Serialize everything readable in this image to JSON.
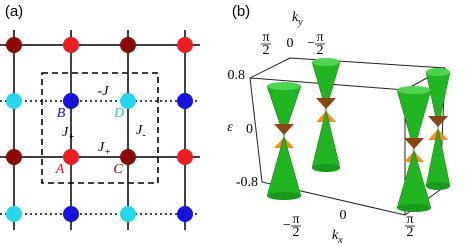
{
  "panel_a": {
    "label": "(a)",
    "bond_top": "-J",
    "bond_left": {
      "main": "J",
      "sub": "+"
    },
    "bond_right": {
      "main": "J",
      "sub": "-"
    },
    "bond_bottom": {
      "main": "J",
      "sub": "+"
    },
    "sites": {
      "A": "A",
      "B": "B",
      "C": "C",
      "D": "D"
    }
  },
  "panel_b": {
    "label": "(b)",
    "y_axis": "ε",
    "y_ticks": [
      "0.8",
      "0",
      "-0.8"
    ],
    "ky_axis": {
      "main": "k",
      "sub": "y"
    },
    "ky_ticks": [
      {
        "sign": "",
        "num": "π",
        "den": "2"
      },
      "0",
      {
        "sign": "−",
        "num": "π",
        "den": "2"
      }
    ],
    "kx_axis": {
      "main": "k",
      "sub": "x"
    },
    "kx_ticks": [
      {
        "sign": "−",
        "num": "π",
        "den": "2"
      },
      "0",
      {
        "sign": "",
        "num": "π",
        "den": "2"
      }
    ]
  }
}
